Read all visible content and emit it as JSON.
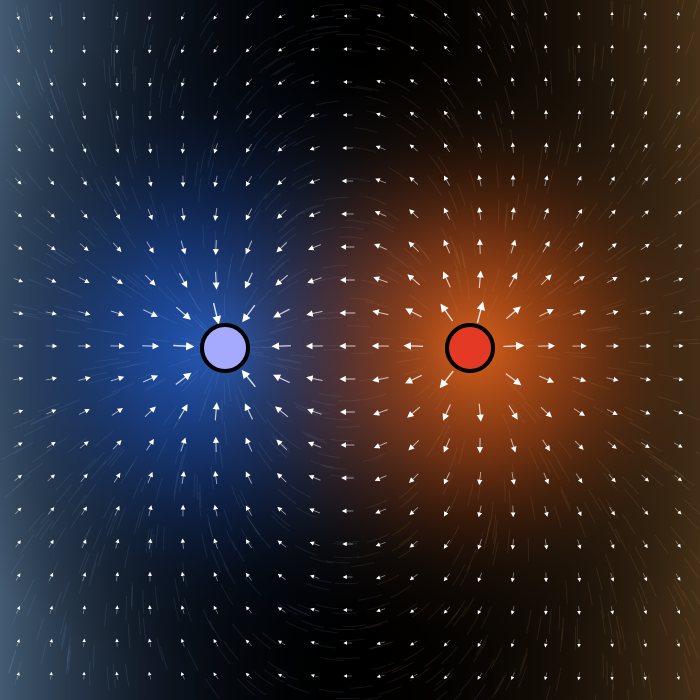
{
  "scene": {
    "type": "electric-dipole-field",
    "background_color": "#000000",
    "arrow_color": "#ffffff"
  },
  "charges": [
    {
      "name": "charge-left",
      "sign": "negative",
      "fill": "#a6aaff",
      "glow": "#2a6ae0",
      "outline": "#000000"
    },
    {
      "name": "charge-right",
      "sign": "positive",
      "fill": "#e43a25",
      "glow": "#e0661d",
      "outline": "#000000"
    }
  ],
  "glow_colors": {
    "left_far": "#6f98c4",
    "right_far": "#b07a3a"
  }
}
